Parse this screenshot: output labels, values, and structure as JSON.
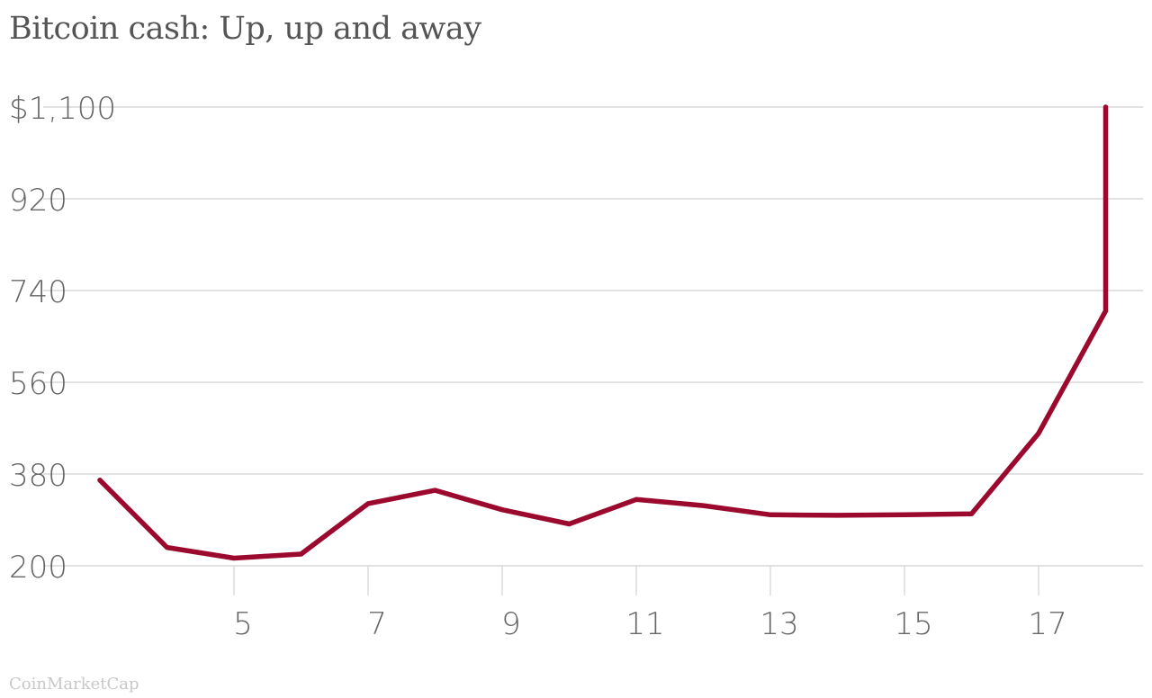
{
  "chart_data": {
    "type": "line",
    "title": "Bitcoin cash: Up, up and away",
    "xlabel": "",
    "ylabel": "",
    "x": [
      3,
      4,
      5,
      6,
      7,
      8,
      9,
      10,
      11,
      12,
      13,
      14,
      15,
      16,
      17,
      18,
      18
    ],
    "series": [
      {
        "values": [
          368,
          236,
          215,
          223,
          322,
          348,
          310,
          282,
          330,
          318,
          300,
          299,
          300,
          302,
          460,
          700,
          1100
        ],
        "color": "#9b0a2e"
      }
    ],
    "ylim": [
      200,
      1100
    ],
    "xlim": [
      2.9,
      18.5
    ],
    "yticks": [
      200,
      380,
      560,
      740,
      920,
      1100
    ],
    "ytick_labels": [
      "200",
      "380",
      "560",
      "740",
      "920",
      "$1,100"
    ],
    "xticks": [
      5,
      7,
      9,
      11,
      13,
      15,
      17
    ],
    "xtick_labels": [
      "5",
      "7",
      "9",
      "11",
      "13",
      "15",
      "17"
    ],
    "grid": true,
    "legend": "none",
    "colors": {
      "line": "#9b0a2e",
      "grid": "#d9d9d9",
      "axis_text": "#666666"
    }
  },
  "source_note": "CoinMarketCap"
}
